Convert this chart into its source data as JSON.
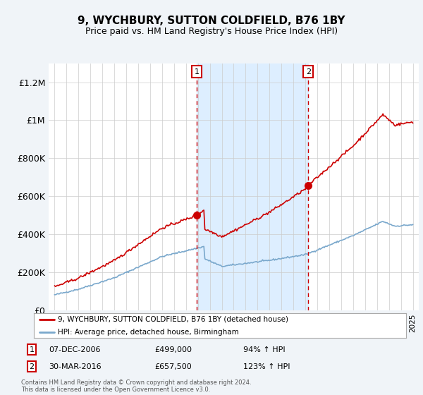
{
  "title": "9, WYCHBURY, SUTTON COLDFIELD, B76 1BY",
  "subtitle": "Price paid vs. HM Land Registry's House Price Index (HPI)",
  "legend_line1": "9, WYCHBURY, SUTTON COLDFIELD, B76 1BY (detached house)",
  "legend_line2": "HPI: Average price, detached house, Birmingham",
  "annotation1_label": "1",
  "annotation1_date": "07-DEC-2006",
  "annotation1_price": "£499,000",
  "annotation1_hpi": "94% ↑ HPI",
  "annotation2_label": "2",
  "annotation2_date": "30-MAR-2016",
  "annotation2_price": "£657,500",
  "annotation2_hpi": "123% ↑ HPI",
  "footnote": "Contains HM Land Registry data © Crown copyright and database right 2024.\nThis data is licensed under the Open Government Licence v3.0.",
  "sale1_year": 2006.917,
  "sale1_price": 499000,
  "sale2_year": 2016.25,
  "sale2_price": 657500,
  "red_line_color": "#cc0000",
  "blue_line_color": "#7aa8cc",
  "shade_color": "#ddeeff",
  "background_color": "#f0f4f8",
  "plot_bg_color": "#ffffff",
  "ylim_max": 1300000,
  "xlim_start": 1994.5,
  "xlim_end": 2025.5
}
